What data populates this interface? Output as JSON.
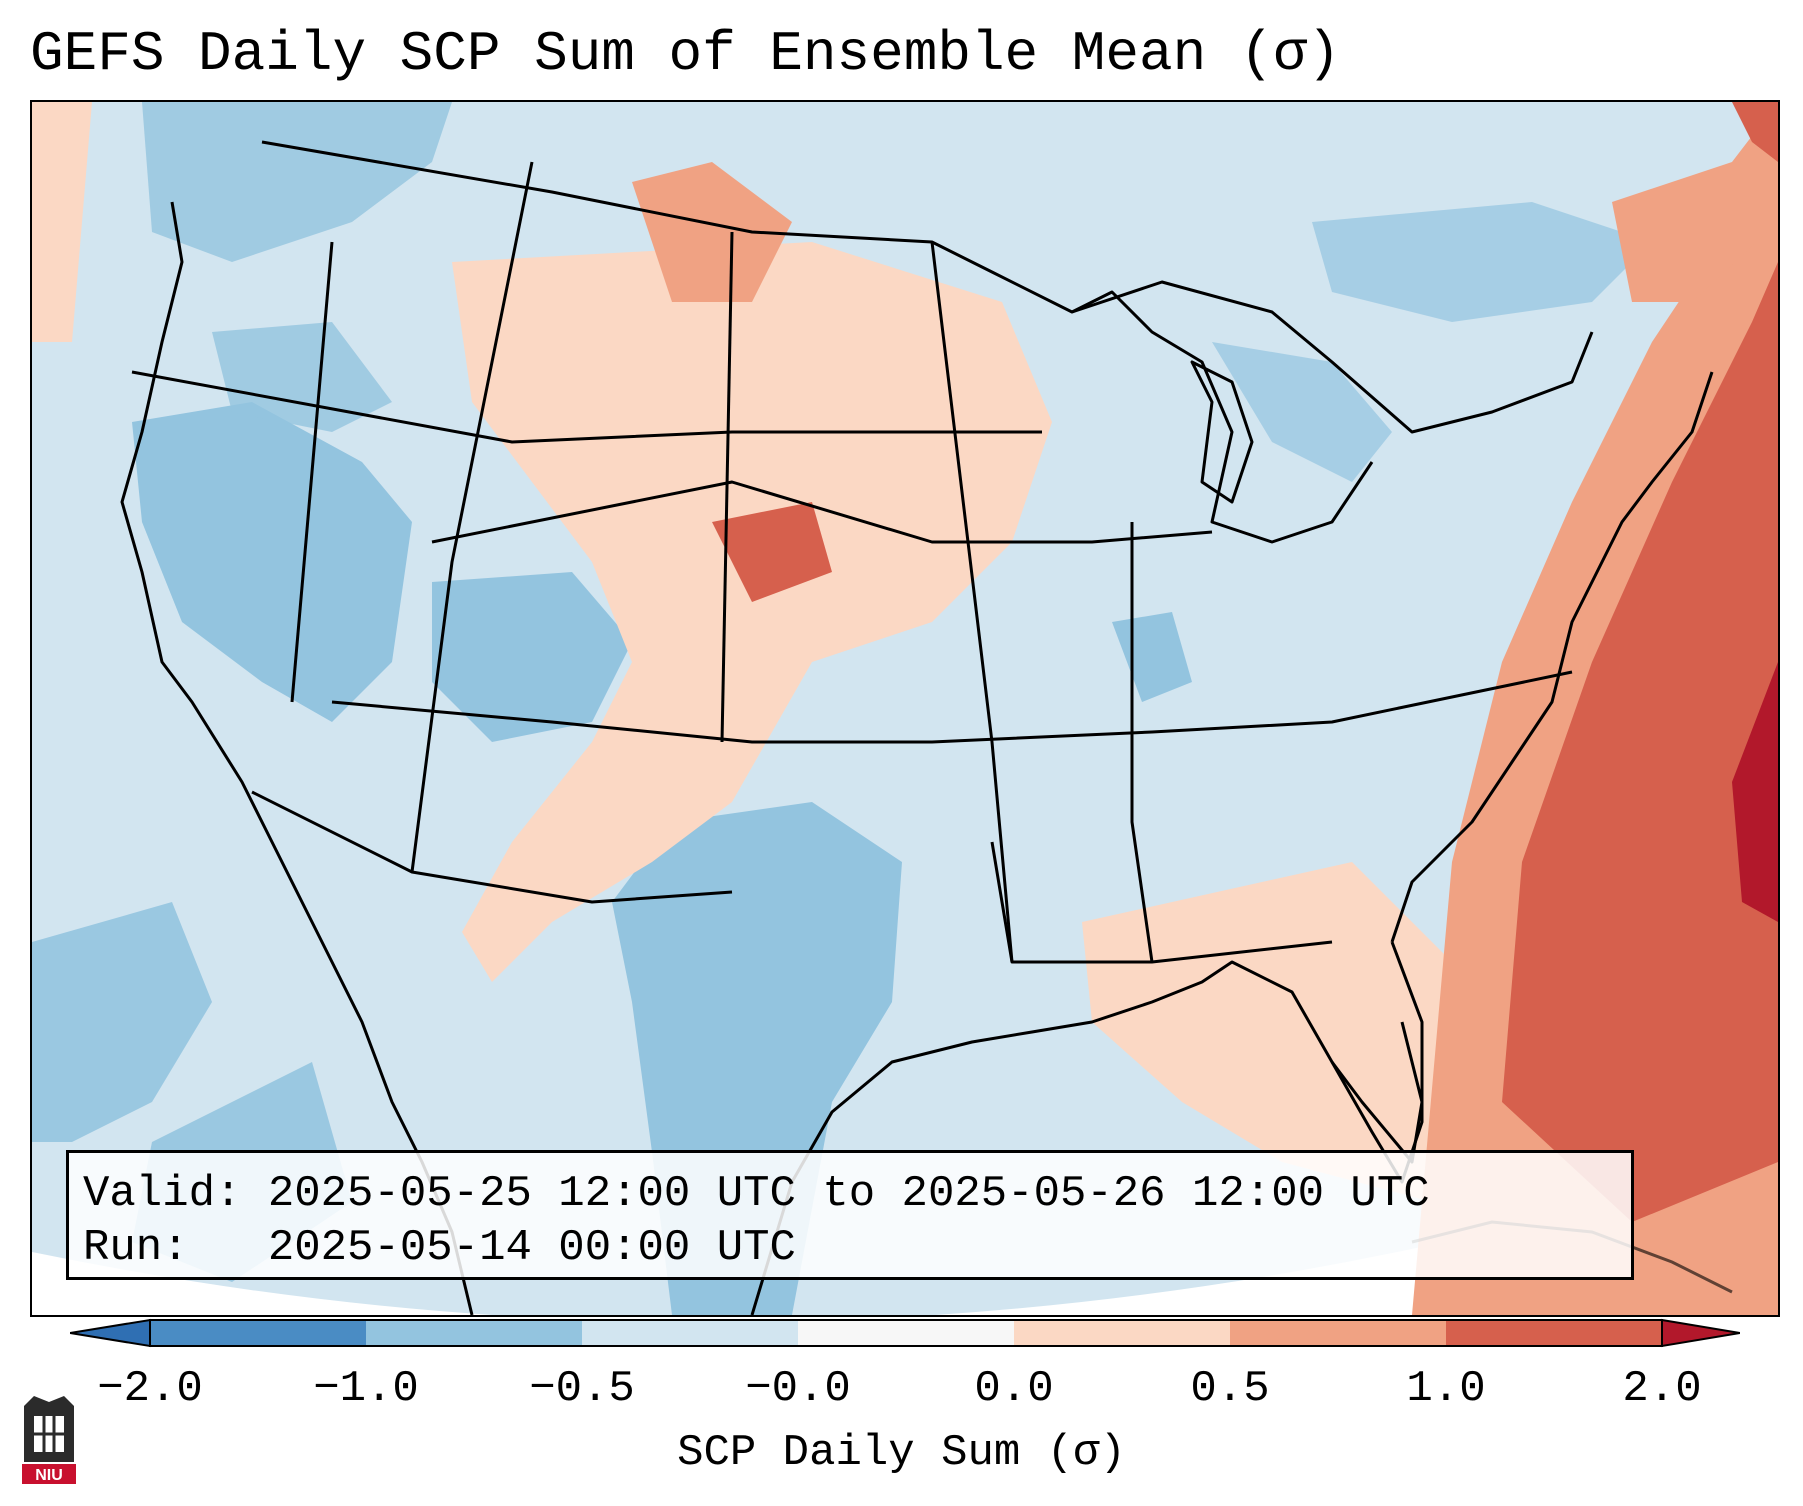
{
  "title": "GEFS Daily SCP Sum of Ensemble Mean (σ)",
  "info": {
    "valid_label": "Valid:",
    "valid_value": "2025-05-25 12:00 UTC to 2025-05-26 12:00 UTC",
    "run_label": "Run:",
    "run_value": "2025-05-14 00:00 UTC"
  },
  "colorbar": {
    "label": "SCP Daily Sum (σ)",
    "ticks": [
      "−2.0",
      "−1.0",
      "−0.5",
      "−0.0",
      "0.0",
      "0.5",
      "1.0",
      "2.0"
    ],
    "colors": {
      "below_min": "#2f6fb3",
      "bin_-2_-1": "#4a8cc4",
      "bin_-1_-0.5": "#93c4df",
      "bin_-0.5_0": "#d2e5f0",
      "bin_zero": "#f7f7f7",
      "bin_0_0.5": "#fbd8c4",
      "bin_0.5_1": "#f0a283",
      "bin_1_2": "#d6604d",
      "above_max": "#b2182b"
    }
  },
  "logo": {
    "text": "NIU",
    "color": "#c8102e"
  },
  "map": {
    "projection_icon": "lambert-conformal-conus",
    "background_color": "#d2e5f0"
  }
}
